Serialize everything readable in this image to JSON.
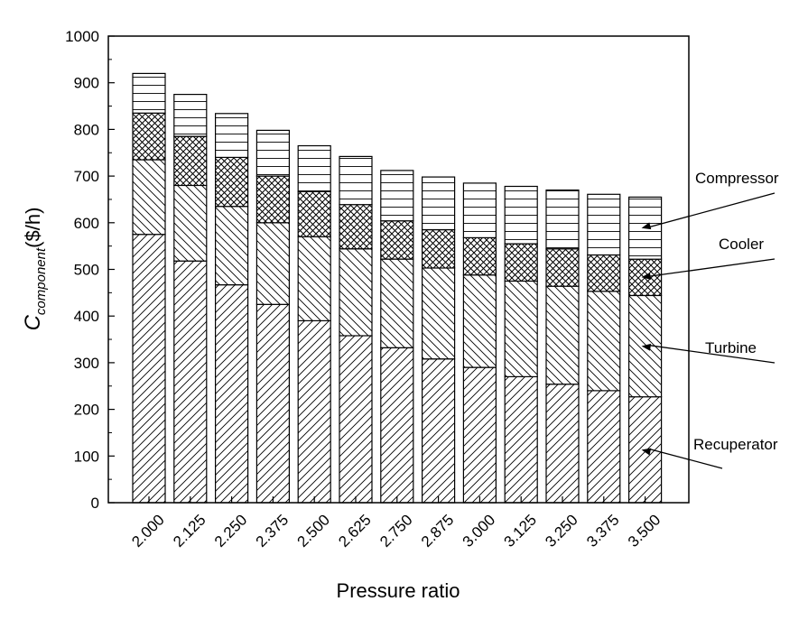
{
  "chart_data": {
    "type": "bar",
    "stacked": true,
    "title": "",
    "xlabel": "Pressure ratio",
    "ylabel": {
      "main": "C",
      "subscript": "component",
      "unit": "($/h)"
    },
    "ylim": [
      0,
      1000
    ],
    "yticks": [
      0,
      100,
      200,
      300,
      400,
      500,
      600,
      700,
      800,
      900,
      1000
    ],
    "categories": [
      "2.000",
      "2.125",
      "2.250",
      "2.375",
      "2.500",
      "2.625",
      "2.750",
      "2.875",
      "3.000",
      "3.125",
      "3.250",
      "3.375",
      "3.500"
    ],
    "series": [
      {
        "name": "Recuperator",
        "pattern": "diagonal-hatch",
        "values": [
          575,
          518,
          467,
          425,
          390,
          358,
          332,
          308,
          290,
          270,
          254,
          240,
          227
        ]
      },
      {
        "name": "Turbine",
        "pattern": "back-diagonal-hatch",
        "values": [
          160,
          162,
          168,
          175,
          180,
          186,
          190,
          195,
          198,
          205,
          210,
          213,
          217
        ]
      },
      {
        "name": "Cooler",
        "pattern": "cross-hatch",
        "values": [
          100,
          105,
          105,
          100,
          97,
          95,
          82,
          82,
          80,
          80,
          80,
          78,
          78
        ]
      },
      {
        "name": "Compressor",
        "pattern": "horizontal-lines",
        "values": [
          85,
          90,
          94,
          98,
          98,
          103,
          108,
          113,
          117,
          123,
          126,
          130,
          133
        ]
      }
    ],
    "annotations": [
      {
        "text": "Compressor",
        "series": "Compressor"
      },
      {
        "text": "Cooler",
        "series": "Cooler"
      },
      {
        "text": "Turbine",
        "series": "Turbine"
      },
      {
        "text": "Recuperator",
        "series": "Recuperator"
      }
    ],
    "grid": false,
    "legend": "none"
  }
}
